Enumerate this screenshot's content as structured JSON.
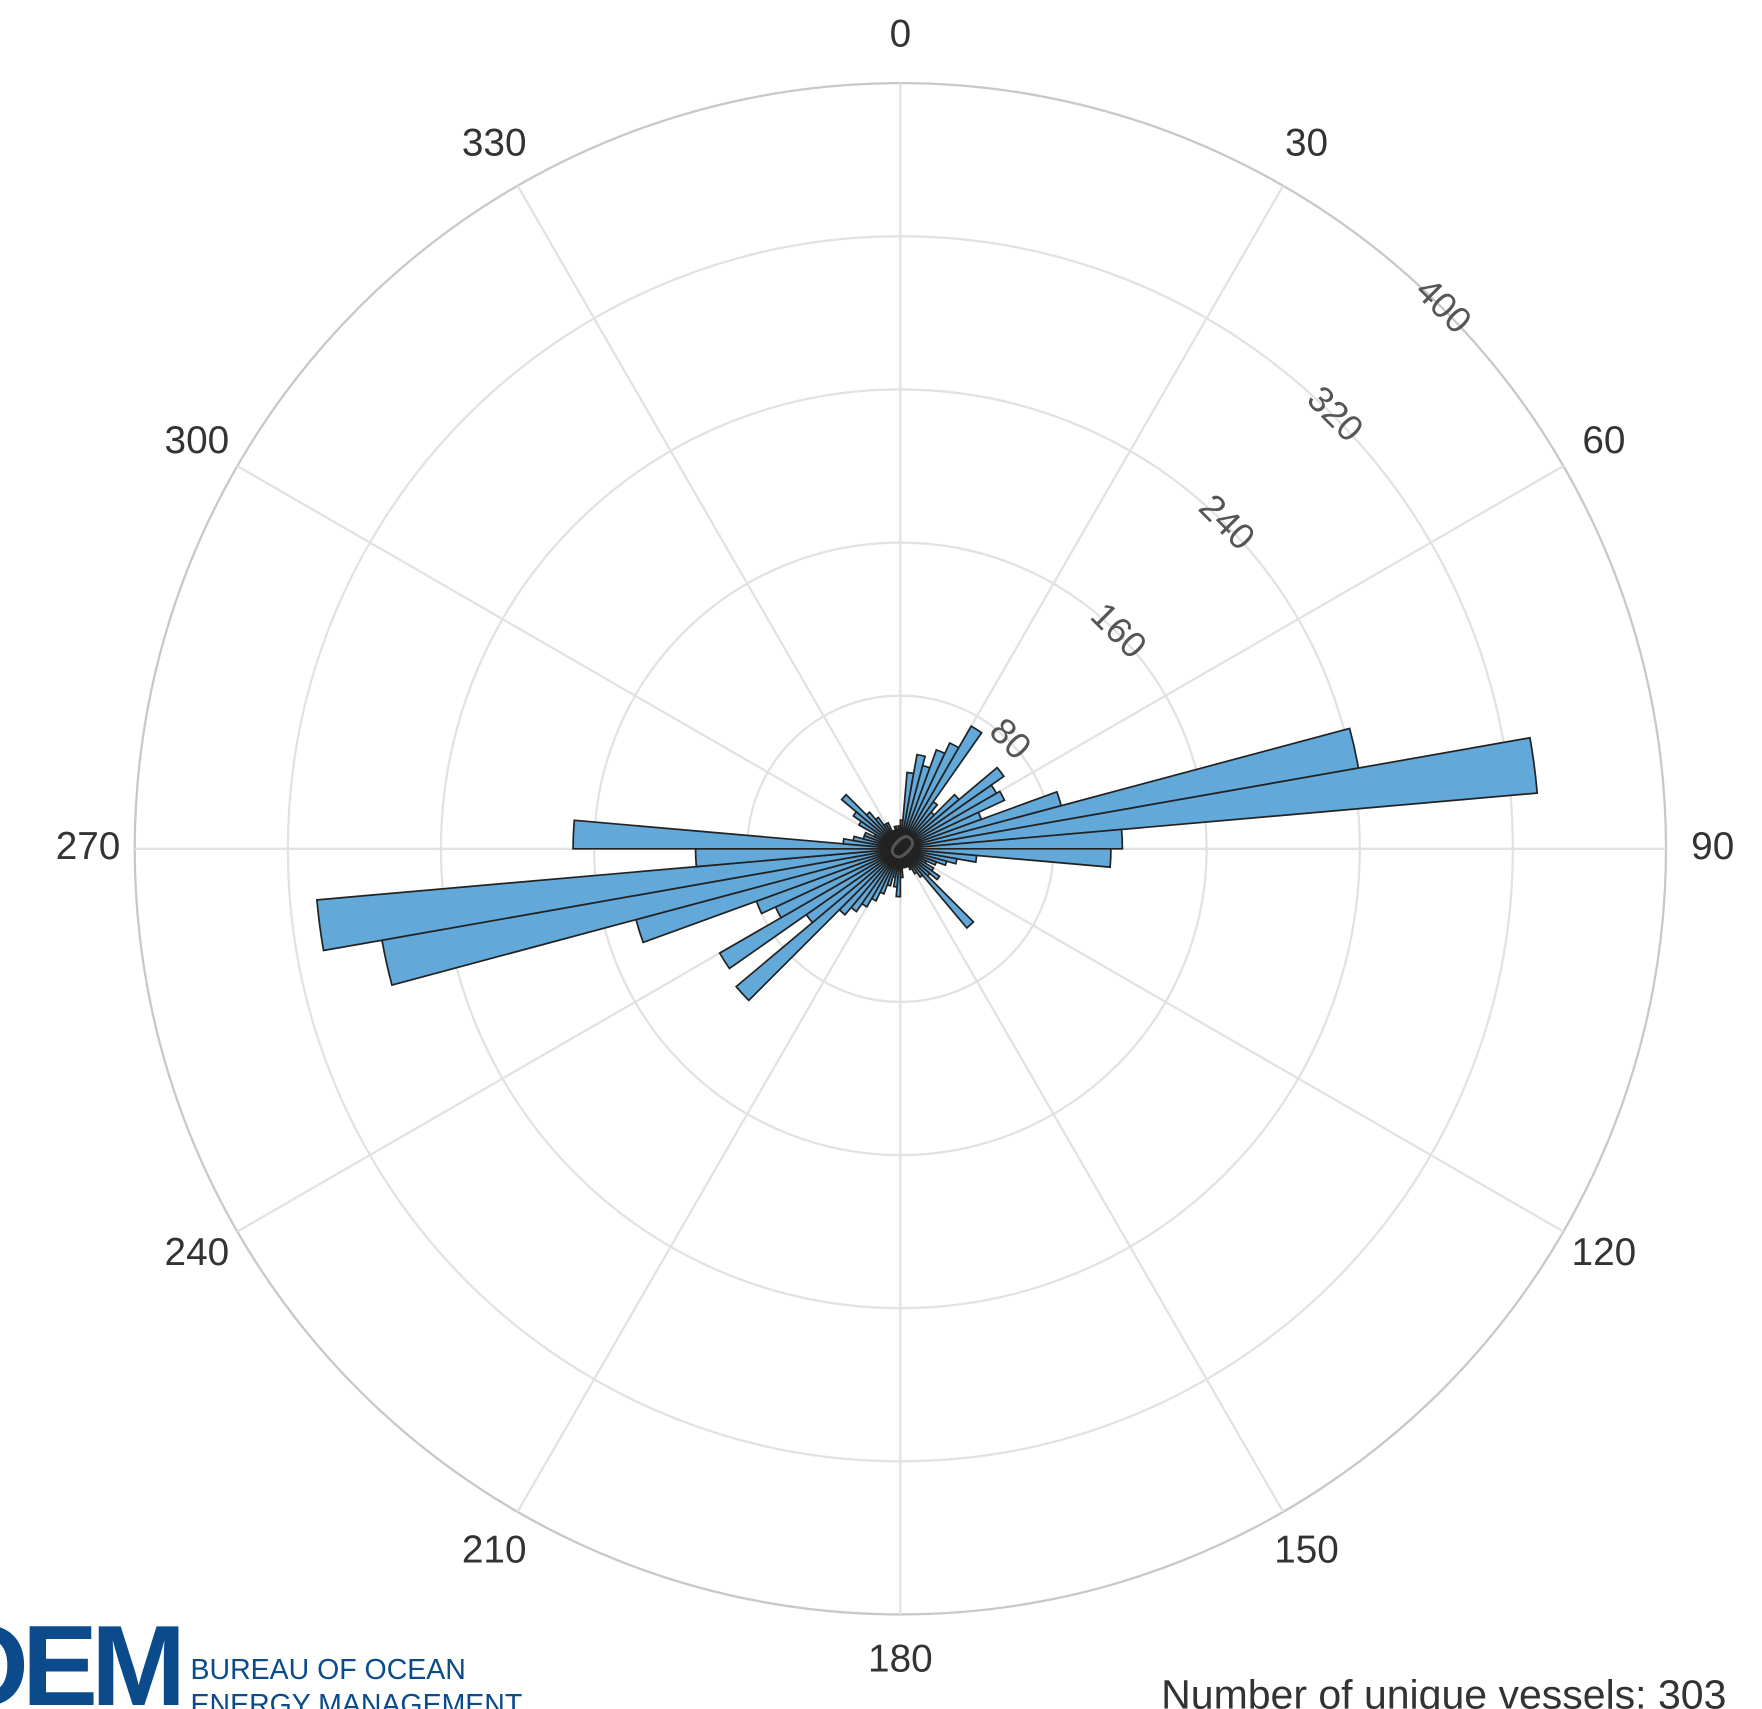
{
  "chart_data": {
    "type": "polar_histogram",
    "bins": [
      0,
      5,
      10,
      15,
      20,
      25,
      30,
      35,
      40,
      45,
      50,
      55,
      60,
      65,
      70,
      75,
      80,
      85,
      90,
      95,
      100,
      105,
      110,
      115,
      120,
      125,
      130,
      135,
      140,
      145,
      150,
      155,
      160,
      165,
      170,
      175,
      180,
      185,
      190,
      195,
      200,
      205,
      210,
      215,
      220,
      225,
      230,
      235,
      240,
      245,
      250,
      255,
      260,
      265,
      270,
      275,
      280,
      285,
      290,
      295,
      300,
      305,
      310,
      315,
      320,
      325,
      330,
      335,
      340,
      345,
      350,
      355,
      360
    ],
    "counts": [
      15,
      40,
      50,
      45,
      55,
      61,
      74,
      30,
      25,
      40,
      66,
      58,
      60,
      45,
      87,
      243,
      334,
      116,
      110,
      40,
      30,
      25,
      20,
      15,
      20,
      25,
      20,
      54,
      18,
      15,
      12,
      10,
      10,
      10,
      10,
      15,
      25,
      20,
      15,
      20,
      25,
      30,
      35,
      40,
      45,
      112,
      60,
      109,
      72,
      80,
      143,
      275,
      306,
      107,
      171,
      30,
      25,
      20,
      20,
      15,
      25,
      30,
      40,
      25,
      20,
      15,
      15,
      10,
      10,
      12,
      10,
      12
    ],
    "color": "#62a8d8",
    "edgecolor": "#222222",
    "rlim": [
      0,
      400
    ],
    "rticks": [
      0,
      80,
      160,
      240,
      320,
      400
    ],
    "thetaticks": [
      0,
      30,
      60,
      90,
      120,
      150,
      180,
      210,
      240,
      270,
      300,
      330
    ],
    "grid": true,
    "annotation": "Number of unique vessels: 303",
    "logo": {
      "mark": "BOEM",
      "line1": "BUREAU OF OCEAN",
      "line2": "ENERGY MANAGEMENT"
    }
  }
}
